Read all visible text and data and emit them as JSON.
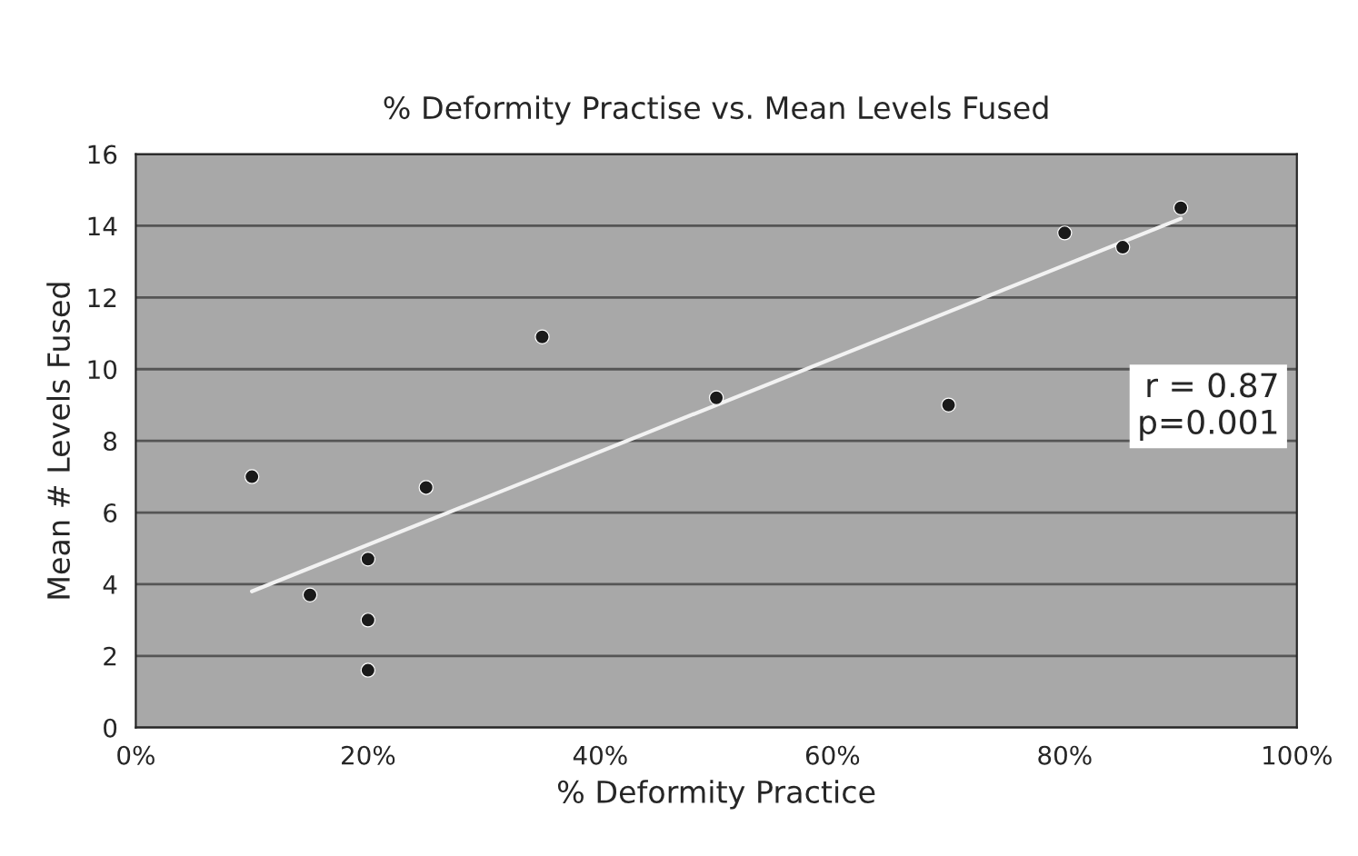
{
  "chart_data": {
    "type": "scatter",
    "title": "% Deformity Practise vs. Mean Levels Fused",
    "xlabel": "% Deformity Practice",
    "ylabel": "Mean # Levels Fused",
    "series": [
      {
        "color": "#1a1a1a",
        "marker": "circle",
        "x": [
          10,
          15,
          20,
          20,
          20,
          25,
          35,
          50,
          70,
          80,
          85,
          90
        ],
        "values": [
          7,
          3.7,
          4.7,
          3.0,
          1.6,
          6.7,
          10.9,
          9.2,
          9.0,
          13.8,
          13.4,
          14.5
        ]
      },
      {
        "type": "line",
        "color": "#f2f2f2",
        "x": [
          10,
          90
        ],
        "values": [
          3.8,
          14.2
        ]
      }
    ],
    "xlim": [
      0,
      100
    ],
    "xticks": [
      {
        "value": 0,
        "label": "0%"
      },
      {
        "value": 20,
        "label": "20%"
      },
      {
        "value": 40,
        "label": "40%"
      },
      {
        "value": 60,
        "label": "60%"
      },
      {
        "value": 80,
        "label": "80%"
      },
      {
        "value": 100,
        "label": "100%"
      }
    ],
    "ylim": [
      0,
      16
    ],
    "yticks": [
      0,
      2,
      4,
      6,
      8,
      10,
      12,
      14,
      16
    ],
    "grid": "y",
    "annotations": [
      "r = 0.87\np=0.001"
    ]
  }
}
